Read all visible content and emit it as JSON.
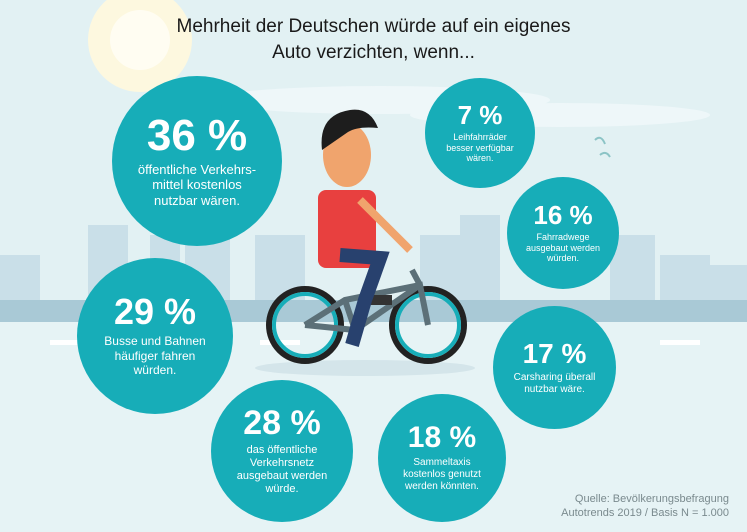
{
  "title_line1": "Mehrheit der Deutschen würde auf ein eigenes",
  "title_line2": "Auto verzichten, wenn...",
  "source_line1": "Quelle: Bevölkerungsbefragung",
  "source_line2": "Autotrends 2019 / Basis N = 1.000",
  "colors": {
    "bubble": "#17adb8",
    "background": "#e2f1f3",
    "skyline": "#c5dde6",
    "shirt": "#e8403f"
  },
  "chart_data": {
    "type": "bubble-infographic",
    "title": "Mehrheit der Deutschen würde auf ein eigenes Auto verzichten, wenn...",
    "items": [
      {
        "value": 36,
        "pct_label": "36 %",
        "label": "öffentliche Verkehrs-mittel kostenlos nutzbar wären."
      },
      {
        "value": 7,
        "pct_label": "7 %",
        "label": "Leihfahrräder besser verfügbar wären."
      },
      {
        "value": 16,
        "pct_label": "16 %",
        "label": "Fahrradwege ausgebaut werden würden."
      },
      {
        "value": 29,
        "pct_label": "29 %",
        "label": "Busse und Bahnen häufiger fahren würden."
      },
      {
        "value": 17,
        "pct_label": "17 %",
        "label": "Carsharing überall nutzbar wäre."
      },
      {
        "value": 28,
        "pct_label": "28 %",
        "label": "das öffentliche Verkehrsnetz ausgebaut werden würde."
      },
      {
        "value": 18,
        "pct_label": "18 %",
        "label": "Sammeltaxis kostenlos genutzt werden könnten."
      }
    ]
  }
}
